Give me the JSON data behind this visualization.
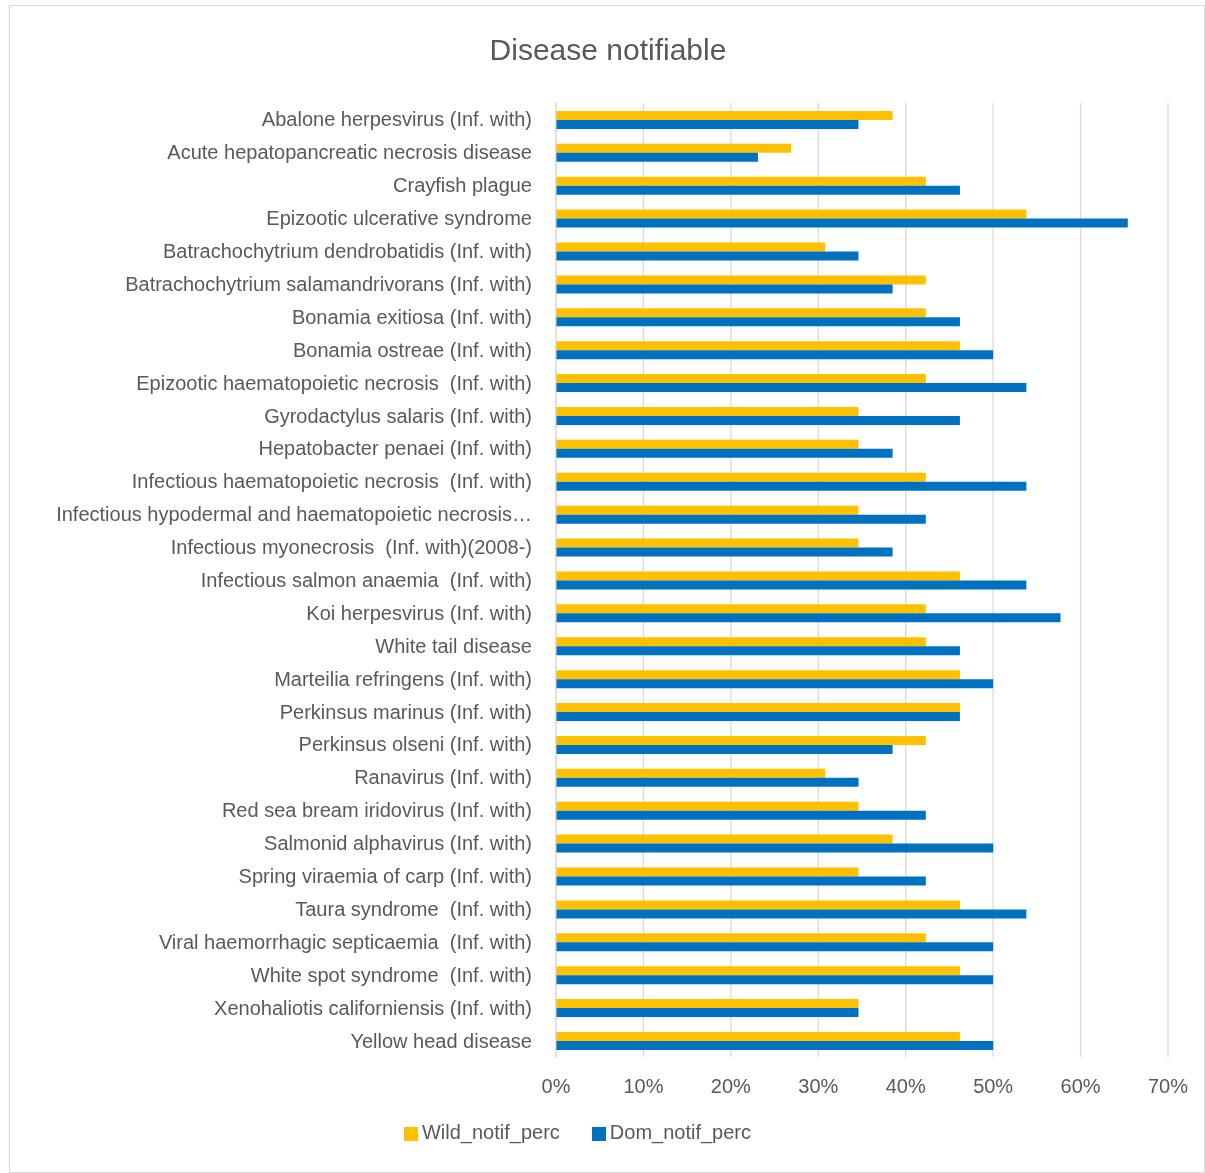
{
  "chart_data": {
    "type": "bar",
    "orientation": "horizontal",
    "title": "Disease notifiable",
    "categories": [
      "Abalone herpesvirus (Inf. with)",
      "Acute hepatopancreatic necrosis disease",
      "Crayfish plague",
      "Epizootic ulcerative syndrome",
      "Batrachochytrium dendrobatidis (Inf. with)",
      "Batrachochytrium salamandrivorans (Inf. with)",
      "Bonamia exitiosa (Inf. with)",
      "Bonamia ostreae (Inf. with)",
      "Epizootic haematopoietic necrosis  (Inf. with)",
      "Gyrodactylus salaris (Inf. with)",
      "Hepatobacter penaei (Inf. with)",
      "Infectious haematopoietic necrosis  (Inf. with)",
      "Infectious hypodermal and haematopoietic necrosis…",
      "Infectious myonecrosis  (Inf. with)(2008-)",
      "Infectious salmon anaemia  (Inf. with)",
      "Koi herpesvirus (Inf. with)",
      "White tail disease",
      "Marteilia refringens (Inf. with)",
      "Perkinsus marinus (Inf. with)",
      "Perkinsus olseni (Inf. with)",
      "Ranavirus (Inf. with)",
      "Red sea bream iridovirus (Inf. with)",
      "Salmonid alphavirus (Inf. with)",
      "Spring viraemia of carp (Inf. with)",
      "Taura syndrome  (Inf. with)",
      "Viral haemorrhagic septicaemia  (Inf. with)",
      "White spot syndrome  (Inf. with)",
      "Xenohaliotis californiensis (Inf. with)",
      "Yellow head disease"
    ],
    "series": [
      {
        "name": "Wild_notif_perc",
        "color": "#ffc000",
        "values": [
          38.5,
          26.9,
          42.3,
          53.8,
          30.8,
          42.3,
          42.3,
          46.2,
          42.3,
          34.6,
          34.6,
          42.3,
          34.6,
          34.6,
          46.2,
          42.3,
          42.3,
          46.2,
          46.2,
          42.3,
          30.8,
          34.6,
          38.5,
          34.6,
          46.2,
          42.3,
          46.2,
          34.6,
          46.2
        ]
      },
      {
        "name": "Dom_notif_perc",
        "color": "#0070c0",
        "values": [
          34.6,
          23.1,
          46.2,
          65.4,
          34.6,
          38.5,
          46.2,
          50,
          53.8,
          46.2,
          38.5,
          53.8,
          42.3,
          38.5,
          53.8,
          57.7,
          46.2,
          50,
          46.2,
          38.5,
          34.6,
          42.3,
          50,
          42.3,
          53.8,
          50,
          50,
          34.6,
          50
        ]
      }
    ],
    "xlim": [
      0,
      70
    ],
    "xticks": [
      {
        "value": 0,
        "label": "0%"
      },
      {
        "value": 10,
        "label": "10%"
      },
      {
        "value": 20,
        "label": "20%"
      },
      {
        "value": 30,
        "label": "30%"
      },
      {
        "value": 40,
        "label": "40%"
      },
      {
        "value": 50,
        "label": "50%"
      },
      {
        "value": 60,
        "label": "60%"
      },
      {
        "value": 70,
        "label": "70%"
      }
    ],
    "grid": "x",
    "legend": "bottom"
  }
}
